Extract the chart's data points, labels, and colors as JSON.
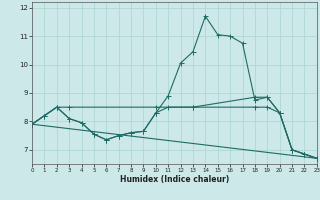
{
  "xlabel": "Humidex (Indice chaleur)",
  "background_color": "#cce8e8",
  "line_color": "#1e6b65",
  "grid_color": "#aad4d0",
  "xlim": [
    0,
    23
  ],
  "ylim": [
    6.5,
    12.2
  ],
  "yticks": [
    7,
    8,
    9,
    10,
    11,
    12
  ],
  "xticks": [
    0,
    1,
    2,
    3,
    4,
    5,
    6,
    7,
    8,
    9,
    10,
    11,
    12,
    13,
    14,
    15,
    16,
    17,
    18,
    19,
    20,
    21,
    22,
    23
  ],
  "line1_x": [
    0,
    1,
    2,
    3,
    4,
    5,
    6,
    7,
    8,
    9,
    10,
    11,
    12,
    13,
    14,
    15,
    16,
    17,
    18,
    19,
    20,
    21,
    22,
    23
  ],
  "line1_y": [
    7.9,
    8.2,
    8.5,
    8.1,
    7.95,
    7.55,
    7.35,
    7.5,
    7.6,
    7.65,
    8.3,
    8.9,
    10.05,
    10.45,
    11.7,
    11.05,
    11.0,
    10.75,
    8.75,
    8.85,
    8.3,
    7.0,
    6.85,
    6.7
  ],
  "line2_x": [
    0,
    2,
    3,
    10,
    13,
    18,
    19,
    20,
    21,
    22,
    23
  ],
  "line2_y": [
    7.9,
    8.5,
    8.5,
    8.5,
    8.5,
    8.85,
    8.85,
    8.3,
    7.0,
    6.85,
    6.7
  ],
  "line3_x": [
    0,
    1,
    2,
    3,
    4,
    5,
    6,
    7,
    8,
    9,
    10,
    11,
    13,
    18,
    19,
    20,
    21,
    22,
    23
  ],
  "line3_y": [
    7.9,
    8.2,
    8.5,
    8.1,
    7.95,
    7.55,
    7.35,
    7.5,
    7.6,
    7.65,
    8.3,
    8.5,
    8.5,
    8.5,
    8.5,
    8.3,
    7.0,
    6.85,
    6.7
  ],
  "line4_x": [
    0,
    23
  ],
  "line4_y": [
    7.9,
    6.7
  ],
  "line2_markers_x": [
    0,
    2,
    3,
    10,
    13,
    18,
    19,
    20,
    21,
    22,
    23
  ],
  "line2_markers_y": [
    7.9,
    8.5,
    8.5,
    8.5,
    8.5,
    8.85,
    8.85,
    8.3,
    7.0,
    6.85,
    6.7
  ],
  "line3_markers_x": [
    0,
    1,
    2,
    3,
    4,
    5,
    6,
    7,
    8,
    9,
    10,
    11,
    13,
    18,
    19,
    20,
    21,
    22,
    23
  ],
  "line3_markers_y": [
    7.9,
    8.2,
    8.5,
    8.1,
    7.95,
    7.55,
    7.35,
    7.5,
    7.6,
    7.65,
    8.3,
    8.5,
    8.5,
    8.5,
    8.5,
    8.3,
    7.0,
    6.85,
    6.7
  ]
}
